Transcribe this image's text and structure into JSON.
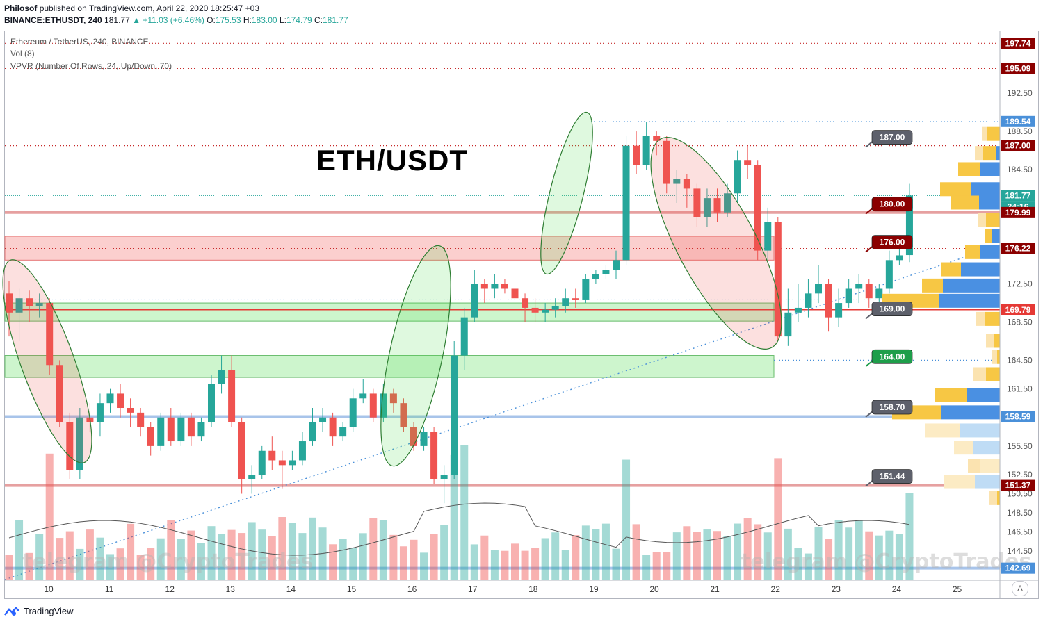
{
  "header": {
    "publisher": "Philosof",
    "published_text": "published on TradingView.com, April 22, 2020 18:25:47 +03",
    "symbol": "BINANCE:ETHUSDT, 240",
    "last": "181.77",
    "change": "▲ +11.03 (+6.46%)",
    "o_label": "O:",
    "o": "175.53",
    "h_label": "H:",
    "h": "183.00",
    "l_label": "L:",
    "l": "174.79",
    "c_label": "C:",
    "c": "181.77"
  },
  "legend": {
    "series": "Ethereum / TetherUS, 240, BINANCE",
    "vol": "Vol (8)",
    "vpvr": "VPVR (Number Of Rows, 24, Up/Down, 70)"
  },
  "title_text": "ETH/USDT",
  "watermark": "telegram @CryptoTrades",
  "footer_brand": "TradingView",
  "corner_button": "A",
  "colors": {
    "up": "#26a69a",
    "down": "#ef5350",
    "level_dark_red": "#8b0000",
    "level_gray": "#5d606b",
    "level_green": "#1e9e4a",
    "price_blue": "#4a90d9"
  },
  "chart_data": {
    "type": "candlestick",
    "symbol": "ETHUSDT",
    "timeframe": "240",
    "x_tick_labels": [
      "10",
      "11",
      "12",
      "13",
      "14",
      "15",
      "16",
      "17",
      "18",
      "19",
      "20",
      "21",
      "22",
      "23",
      "24",
      "25"
    ],
    "y_tick_labels": [
      "197.74",
      "195.09",
      "192.50",
      "189.54",
      "188.50",
      "187.00",
      "184.50",
      "181.77",
      "34:16",
      "179.99",
      "176.22",
      "172.50",
      "169.79",
      "168.50",
      "164.50",
      "161.50",
      "158.59",
      "155.50",
      "152.50",
      "151.37",
      "150.50",
      "148.50",
      "146.50",
      "144.50",
      "142.69"
    ],
    "ylim": [
      141.5,
      199.0
    ],
    "price_labels": [
      {
        "value": 197.74,
        "text": "197.74",
        "color": "#8b0000"
      },
      {
        "value": 195.09,
        "text": "195.09",
        "color": "#8b0000"
      },
      {
        "value": 189.54,
        "text": "189.54",
        "color": "#4a90d9"
      },
      {
        "value": 187.0,
        "text": "187.00",
        "color": "#8b0000"
      },
      {
        "value": 181.77,
        "text": "181.77",
        "color": "#26a69a"
      },
      {
        "value": 180.6,
        "text": "34:16",
        "color": "#26a69a"
      },
      {
        "value": 179.99,
        "text": "179.99",
        "color": "#8b0000"
      },
      {
        "value": 176.22,
        "text": "176.22",
        "color": "#8b0000"
      },
      {
        "value": 169.79,
        "text": "169.79",
        "color": "#e53935"
      },
      {
        "value": 158.59,
        "text": "158.59",
        "color": "#4a90d9"
      },
      {
        "value": 151.37,
        "text": "151.37",
        "color": "#8b0000"
      },
      {
        "value": 142.69,
        "text": "142.69",
        "color": "#4a90d9"
      }
    ],
    "level_flags": [
      {
        "value": 187.0,
        "text": "187.00",
        "color": "#5d606b"
      },
      {
        "value": 180.0,
        "text": "180.00",
        "color": "#8b0000"
      },
      {
        "value": 176.0,
        "text": "176.00",
        "color": "#8b0000"
      },
      {
        "value": 169.0,
        "text": "169.00",
        "color": "#5d606b"
      },
      {
        "value": 164.0,
        "text": "164.00",
        "color": "#1e9e4a"
      },
      {
        "value": 158.7,
        "text": "158.70",
        "color": "#5d606b"
      },
      {
        "value": 151.44,
        "text": "151.44",
        "color": "#5d606b"
      }
    ],
    "candles": [
      [
        171.5,
        169.5,
        172.8,
        167.0
      ],
      [
        169.5,
        171.0,
        172.0,
        166.5
      ],
      [
        171.0,
        170.2,
        171.8,
        168.5
      ],
      [
        170.2,
        170.5,
        171.5,
        169.0
      ],
      [
        170.5,
        164.0,
        171.0,
        163.0
      ],
      [
        164.0,
        158.0,
        164.5,
        157.5
      ],
      [
        158.0,
        153.0,
        159.0,
        152.0
      ],
      [
        153.0,
        158.5,
        159.5,
        152.0
      ],
      [
        158.5,
        158.0,
        160.0,
        157.0
      ],
      [
        158.0,
        160.0,
        161.0,
        156.5
      ],
      [
        160.0,
        161.0,
        161.5,
        159.0
      ],
      [
        161.0,
        159.5,
        162.0,
        158.5
      ],
      [
        159.5,
        159.0,
        160.5,
        157.5
      ],
      [
        159.0,
        157.5,
        159.5,
        156.5
      ],
      [
        157.5,
        155.5,
        158.0,
        154.5
      ],
      [
        155.5,
        158.5,
        159.0,
        155.0
      ],
      [
        158.5,
        156.0,
        159.5,
        155.5
      ],
      [
        156.0,
        158.5,
        159.0,
        155.5
      ],
      [
        158.5,
        156.5,
        159.0,
        155.5
      ],
      [
        156.5,
        158.0,
        158.5,
        156.0
      ],
      [
        158.0,
        162.0,
        163.0,
        157.5
      ],
      [
        162.0,
        163.5,
        165.0,
        161.0
      ],
      [
        163.5,
        158.0,
        165.0,
        157.5
      ],
      [
        158.0,
        152.0,
        158.5,
        150.5
      ],
      [
        152.0,
        152.5,
        153.5,
        150.5
      ],
      [
        152.5,
        155.0,
        155.5,
        152.0
      ],
      [
        155.0,
        154.0,
        156.5,
        153.0
      ],
      [
        154.0,
        153.5,
        155.0,
        151.0
      ],
      [
        153.5,
        154.0,
        155.0,
        153.0
      ],
      [
        154.0,
        156.0,
        157.0,
        153.5
      ],
      [
        156.0,
        158.0,
        159.5,
        155.5
      ],
      [
        158.0,
        158.5,
        159.5,
        157.0
      ],
      [
        158.5,
        156.5,
        159.0,
        155.5
      ],
      [
        156.5,
        157.5,
        158.0,
        156.0
      ],
      [
        157.5,
        160.5,
        161.5,
        157.0
      ],
      [
        160.5,
        161.0,
        162.5,
        160.0
      ],
      [
        161.0,
        158.5,
        161.5,
        158.0
      ],
      [
        158.5,
        161.0,
        162.0,
        158.0
      ],
      [
        161.0,
        160.0,
        161.5,
        159.0
      ],
      [
        160.0,
        157.5,
        160.5,
        157.0
      ],
      [
        157.5,
        155.5,
        158.0,
        155.0
      ],
      [
        155.5,
        157.0,
        157.5,
        155.0
      ],
      [
        157.0,
        152.0,
        157.5,
        151.5
      ],
      [
        152.0,
        152.5,
        153.5,
        149.5
      ],
      [
        152.5,
        165.0,
        166.5,
        152.0
      ],
      [
        165.0,
        169.0,
        170.0,
        163.5
      ],
      [
        169.0,
        172.5,
        174.0,
        168.5
      ],
      [
        172.5,
        172.0,
        173.0,
        170.5
      ],
      [
        172.0,
        172.5,
        173.5,
        171.0
      ],
      [
        172.5,
        172.0,
        173.0,
        171.5
      ],
      [
        172.0,
        171.0,
        173.0,
        170.5
      ],
      [
        171.0,
        170.0,
        171.5,
        168.5
      ],
      [
        170.0,
        169.5,
        171.0,
        168.5
      ],
      [
        169.5,
        169.8,
        170.5,
        168.5
      ],
      [
        169.8,
        170.2,
        171.0,
        169.0
      ],
      [
        170.2,
        171.0,
        172.0,
        169.5
      ],
      [
        171.0,
        170.8,
        172.0,
        170.0
      ],
      [
        170.8,
        173.0,
        173.5,
        170.5
      ],
      [
        173.0,
        173.5,
        174.0,
        172.5
      ],
      [
        173.5,
        174.0,
        174.5,
        173.0
      ],
      [
        174.0,
        175.0,
        176.0,
        173.0
      ],
      [
        175.0,
        187.0,
        188.0,
        174.5
      ],
      [
        187.0,
        185.0,
        188.5,
        184.0
      ],
      [
        185.0,
        188.0,
        189.5,
        184.5
      ],
      [
        188.0,
        187.5,
        188.5,
        186.0
      ],
      [
        187.5,
        183.0,
        188.0,
        182.0
      ],
      [
        183.0,
        183.5,
        184.5,
        181.0
      ],
      [
        183.5,
        182.5,
        184.0,
        180.5
      ],
      [
        182.5,
        179.5,
        183.0,
        178.5
      ],
      [
        179.5,
        181.5,
        182.5,
        178.5
      ],
      [
        181.5,
        180.0,
        182.5,
        179.0
      ],
      [
        180.0,
        182.0,
        183.0,
        179.5
      ],
      [
        182.0,
        185.5,
        186.5,
        181.0
      ],
      [
        185.5,
        185.0,
        187.0,
        183.5
      ],
      [
        185.0,
        176.0,
        185.5,
        175.0
      ],
      [
        176.0,
        179.0,
        180.5,
        175.0
      ],
      [
        179.0,
        167.0,
        179.5,
        166.5
      ],
      [
        167.0,
        169.5,
        172.0,
        166.0
      ],
      [
        169.5,
        170.0,
        172.5,
        168.5
      ],
      [
        170.0,
        171.5,
        173.0,
        169.0
      ],
      [
        171.5,
        172.5,
        174.5,
        170.5
      ],
      [
        172.5,
        169.0,
        173.0,
        167.5
      ],
      [
        169.0,
        170.5,
        172.0,
        168.0
      ],
      [
        170.5,
        172.0,
        173.0,
        170.0
      ],
      [
        172.0,
        172.5,
        173.5,
        170.5
      ],
      [
        172.5,
        171.0,
        173.0,
        170.0
      ],
      [
        171.0,
        172.0,
        172.5,
        170.0
      ],
      [
        172.0,
        175.0,
        176.0,
        171.5
      ],
      [
        175.0,
        175.5,
        176.5,
        174.5
      ],
      [
        175.53,
        181.77,
        183.0,
        174.79
      ]
    ],
    "volume_ma": "Vol (8)"
  }
}
